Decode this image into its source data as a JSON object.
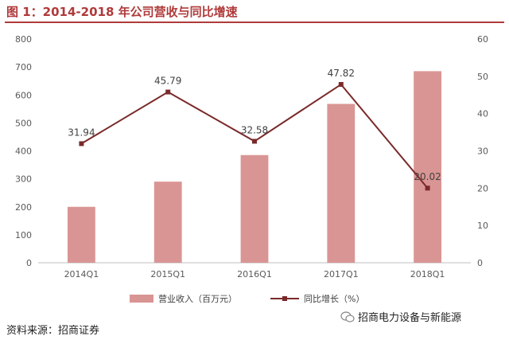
{
  "figure": {
    "title": "图 1：2014-2018 年公司营收与同比增速",
    "source": "资料来源：招商证券",
    "watermark": "招商电力设备与新能源"
  },
  "colors": {
    "title": "#b03a3a",
    "bar": "#d99594",
    "line": "#7a2a2a",
    "axis_text": "#595959"
  },
  "chart_data": {
    "type": "bar+line",
    "categories": [
      "2014Q1",
      "2015Q1",
      "2016Q1",
      "2017Q1",
      "2018Q1"
    ],
    "series": [
      {
        "name": "营业收入（百万元）",
        "type": "bar",
        "axis": "left",
        "values": [
          200,
          290,
          385,
          568,
          685
        ]
      },
      {
        "name": "同比增长（%）",
        "type": "line",
        "axis": "right",
        "values": [
          31.94,
          45.79,
          32.58,
          47.82,
          20.02
        ],
        "labels": [
          "31.94",
          "45.79",
          "32.58",
          "47.82",
          "20.02"
        ]
      }
    ],
    "y_left": {
      "min": 0,
      "max": 800,
      "ticks": [
        0,
        100,
        200,
        300,
        400,
        500,
        600,
        700,
        800
      ]
    },
    "y_right": {
      "min": 0,
      "max": 60,
      "ticks": [
        0,
        10,
        20,
        30,
        40,
        50,
        60
      ]
    },
    "grid": false,
    "legend": "bottom"
  }
}
